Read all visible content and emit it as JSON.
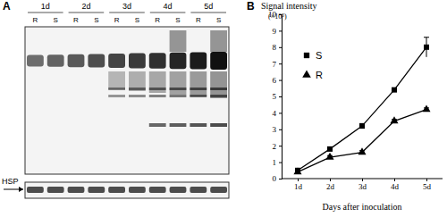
{
  "panel_a": {
    "label": "A",
    "days": [
      "1d",
      "2d",
      "3d",
      "4d",
      "5d"
    ],
    "lanes": [
      "R",
      "S"
    ],
    "loading_control": "HSP"
  },
  "chart_data": {
    "type": "line",
    "panel_label": "B",
    "y_label": "Signal intensity",
    "y_label_unit": "(×10⁵)",
    "x_label": "Days after inoculation",
    "categories": [
      "1d",
      "2d",
      "3d",
      "4d",
      "5d"
    ],
    "series": [
      {
        "name": "S",
        "color": "#000000",
        "marker": "square",
        "line_style": "solid",
        "values": [
          0.5,
          1.8,
          3.2,
          5.4,
          8.0
        ],
        "errors": [
          0.1,
          0.1,
          0.15,
          0.1,
          0.6
        ]
      },
      {
        "name": "R",
        "color": "#000000",
        "marker": "triangle",
        "line_style": "solid",
        "values": [
          0.4,
          1.3,
          1.6,
          3.5,
          4.2
        ],
        "errors": [
          0.05,
          0.1,
          0.1,
          0.1,
          0.1
        ]
      }
    ],
    "ylim": [
      0,
      10
    ],
    "yticks": [
      0,
      1,
      2,
      3,
      4,
      5,
      6,
      7,
      8,
      9,
      10
    ],
    "grid": false,
    "legend": "upper left"
  }
}
